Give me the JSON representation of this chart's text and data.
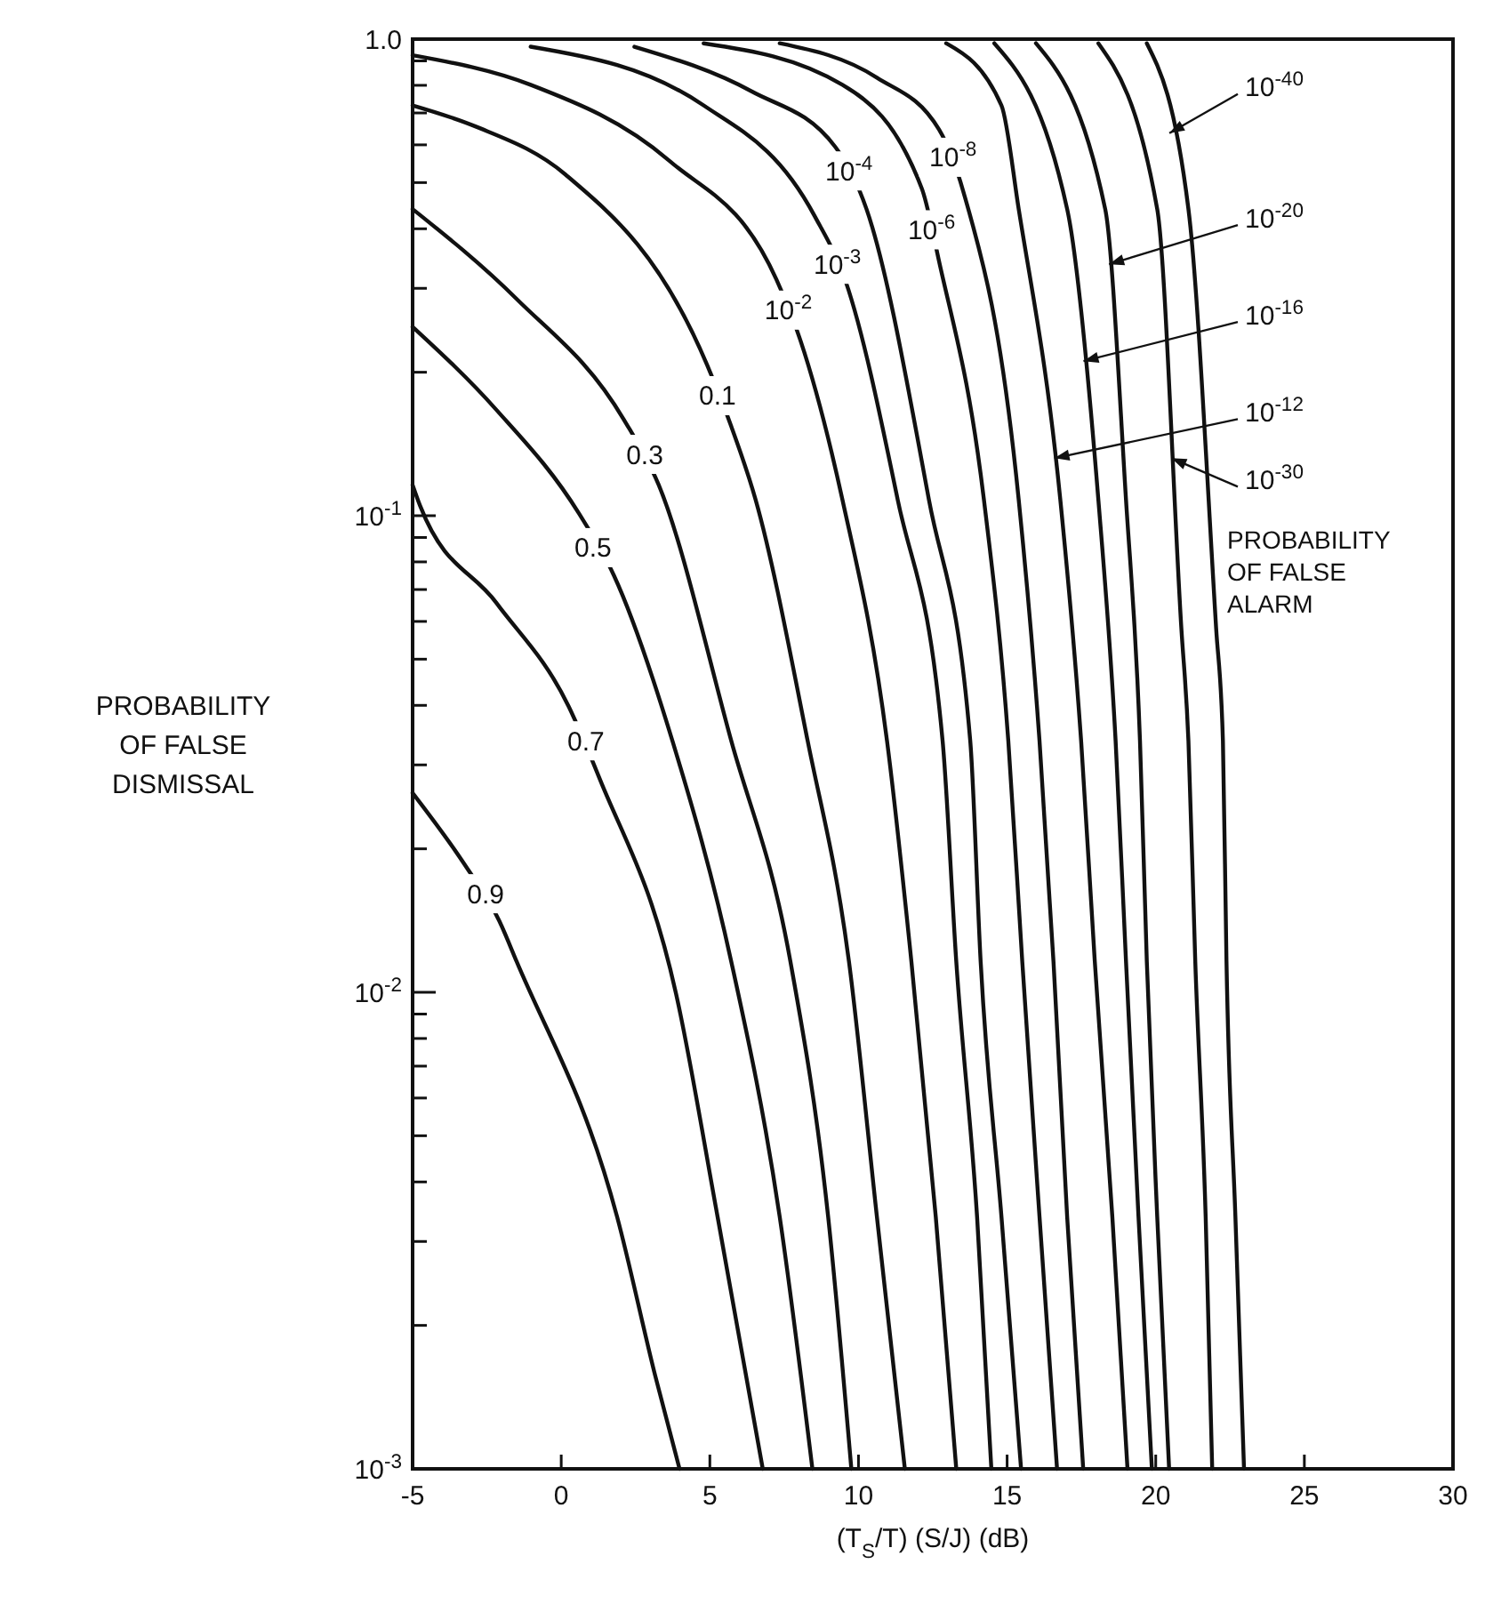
{
  "chart_data": {
    "type": "line",
    "xlabel": "(T$_{S}$/T) (S/J) (dB)",
    "ylabel": "PROBABILITY\nOF FALSE\nDISMISSAL",
    "log": "y",
    "xlim": [
      -5,
      30
    ],
    "xticks": [
      -5,
      0,
      5,
      10,
      15,
      20,
      25,
      30
    ],
    "ylim": [
      0.001,
      1
    ],
    "yticks": [
      {
        "value": 1,
        "label": "1.0"
      },
      {
        "value": 0.9,
        "label": null
      },
      {
        "value": 0.8,
        "label": null
      },
      {
        "value": 0.7,
        "label": null
      },
      {
        "value": 0.6,
        "label": null
      },
      {
        "value": 0.5,
        "label": null
      },
      {
        "value": 0.4,
        "label": null
      },
      {
        "value": 0.3,
        "label": null
      },
      {
        "value": 0.2,
        "label": null
      },
      {
        "value": 0.1,
        "label": "10$^{-1}$"
      },
      {
        "value": 0.09,
        "label": null
      },
      {
        "value": 0.08,
        "label": null
      },
      {
        "value": 0.07,
        "label": null
      },
      {
        "value": 0.06,
        "label": null
      },
      {
        "value": 0.05,
        "label": null
      },
      {
        "value": 0.04,
        "label": null
      },
      {
        "value": 0.03,
        "label": null
      },
      {
        "value": 0.02,
        "label": null
      },
      {
        "value": 0.01,
        "label": "10$^{-2}$"
      },
      {
        "value": 0.009,
        "label": null
      },
      {
        "value": 0.008,
        "label": null
      },
      {
        "value": 0.007,
        "label": null
      },
      {
        "value": 0.006,
        "label": null
      },
      {
        "value": 0.005,
        "label": null
      },
      {
        "value": 0.004,
        "label": null
      },
      {
        "value": 0.003,
        "label": null
      },
      {
        "value": 0.002,
        "label": null
      },
      {
        "value": 0.001,
        "label": "10$^{-3}$"
      }
    ],
    "grid": false,
    "series": [
      {
        "color": "#111111",
        "x": [
          -5,
          -3.24,
          -2.08,
          -1.5,
          1.88,
          3.16,
          3.98
        ],
        "values": [
          0.0262,
          0.0185,
          0.0141,
          0.0116,
          0.00338,
          0.00157,
          0.001
        ]
      },
      {
        "color": "#111111",
        "x": [
          -5,
          -4.75,
          -2.18,
          0.25,
          1.3,
          3.86,
          5.26,
          6.78
        ],
        "values": [
          0.116,
          0.105,
          0.0656,
          0.0398,
          0.028,
          0.00995,
          0.00338,
          0.001
        ]
      },
      {
        "color": "#111111",
        "x": [
          -5,
          -2.19,
          0.6,
          1.77,
          3.74,
          5.72,
          7.35,
          8.45
        ],
        "values": [
          0.249,
          0.167,
          0.101,
          0.075,
          0.0337,
          0.0116,
          0.00338,
          0.001
        ]
      },
      {
        "color": "#111111",
        "x": [
          -5,
          -1.5,
          2.11,
          3.28,
          5.72,
          7.71,
          8.98,
          9.76
        ],
        "values": [
          0.44,
          0.285,
          0.159,
          0.116,
          0.0337,
          0.0116,
          0.00338,
          0.001
        ]
      },
      {
        "color": "#111111",
        "x": [
          -5,
          -2.89,
          0.14,
          4.91,
          5.72,
          6.54,
          8.29,
          9.68,
          10.62,
          11.56
        ],
        "values": [
          0.726,
          0.656,
          0.52,
          0.207,
          0.154,
          0.108,
          0.0337,
          0.0116,
          0.00338,
          0.001
        ]
      },
      {
        "color": "#111111",
        "x": [
          -5,
          -1.03,
          3.63,
          7.24,
          8.05,
          9.46,
          10.96,
          11.78,
          12.6,
          13.29
        ],
        "values": [
          0.925,
          0.802,
          0.556,
          0.313,
          0.233,
          0.108,
          0.0337,
          0.0116,
          0.00338,
          0.001
        ]
      },
      {
        "color": "#111111",
        "x": [
          -1.03,
          4.79,
          8.52,
          9.57,
          11.32,
          12.83,
          13.29,
          13.99,
          14.47
        ],
        "values": [
          0.964,
          0.726,
          0.426,
          0.31,
          0.108,
          0.0337,
          0.0116,
          0.00338,
          0.001
        ]
      },
      {
        "color": "#111111",
        "x": [
          2.46,
          6.42,
          9.22,
          10.27,
          12.37,
          13.76,
          14.11,
          14.81,
          15.47
        ],
        "values": [
          0.964,
          0.776,
          0.594,
          0.44,
          0.108,
          0.0337,
          0.0116,
          0.00338,
          0.001
        ]
      },
      {
        "color": "#111111",
        "x": [
          4.79,
          9.46,
          12.13,
          12.71,
          14.22,
          15.04,
          15.51,
          16.09,
          16.68
        ],
        "values": [
          0.98,
          0.802,
          0.486,
          0.342,
          0.108,
          0.0337,
          0.0116,
          0.00338,
          0.001
        ]
      },
      {
        "color": "#111111",
        "x": [
          7.35,
          10.62,
          12.71,
          13.53,
          15.39,
          16.09,
          16.56,
          17.02,
          17.56
        ],
        "values": [
          0.98,
          0.83,
          0.646,
          0.478,
          0.108,
          0.0337,
          0.0116,
          0.00338,
          0.001
        ]
      },
      {
        "color": "#111111",
        "x": [
          12.95,
          14.81,
          15.39,
          16.79,
          17.49,
          17.95,
          18.54,
          19.05
        ],
        "values": [
          0.98,
          0.726,
          0.44,
          0.108,
          0.0337,
          0.0116,
          0.00338,
          0.001
        ]
      },
      {
        "color": "#111111",
        "x": [
          14.57,
          17.02,
          18.07,
          18.65,
          19.0,
          19.42,
          19.87
        ],
        "values": [
          0.98,
          0.44,
          0.108,
          0.0337,
          0.0116,
          0.00338,
          0.001
        ]
      },
      {
        "color": "#111111",
        "x": [
          15.97,
          18.3,
          19.0,
          19.47,
          19.7,
          20.05,
          20.45
        ],
        "values": [
          0.98,
          0.44,
          0.108,
          0.0337,
          0.0116,
          0.00338,
          0.001
        ]
      },
      {
        "color": "#111111",
        "x": [
          18.07,
          20.05,
          20.86,
          21.1,
          21.33,
          21.68,
          21.9
        ],
        "values": [
          0.98,
          0.44,
          0.0583,
          0.0337,
          0.0116,
          0.00338,
          0.001
        ]
      },
      {
        "color": "#111111",
        "x": [
          19.7,
          21.1,
          22.03,
          22.26,
          22.38,
          22.68,
          22.97
        ],
        "values": [
          0.98,
          0.44,
          0.0583,
          0.0337,
          0.0116,
          0.00338,
          0.001
        ]
      }
    ],
    "annotations": [
      {
        "text": "0.9",
        "x": -2.54,
        "y": 0.0161
      },
      {
        "text": "0.7",
        "x": 0.83,
        "y": 0.0337
      },
      {
        "text": "0.5",
        "x": 1.07,
        "y": 0.0857
      },
      {
        "text": "0.3",
        "x": 2.81,
        "y": 0.1345
      },
      {
        "text": "0.1",
        "x": 5.26,
        "y": 0.1786
      },
      {
        "text": "10$^{-2}$",
        "x": 7.64,
        "y": 0.27
      },
      {
        "text": "10$^{-3}$",
        "x": 9.29,
        "y": 0.337
      },
      {
        "text": "10$^{-4}$",
        "x": 9.68,
        "y": 0.529
      },
      {
        "text": "10$^{-6}$",
        "x": 12.46,
        "y": 0.398
      },
      {
        "text": "10$^{-8}$",
        "x": 13.18,
        "y": 0.565
      },
      {
        "text": "10$^{-40}$",
        "x": 20.46,
        "y": 0.635
      },
      {
        "text": "10$^{-20}$",
        "x": 18.43,
        "y": 0.337
      },
      {
        "text": "10$^{-16}$",
        "x": 17.57,
        "y": 0.211
      },
      {
        "text": "10$^{-12}$",
        "x": 16.59,
        "y": 0.132
      },
      {
        "text": "10$^{-30}$",
        "x": 20.53,
        "y": 0.132
      },
      "PROBABILITY\nOF FALSE\nALARM"
    ]
  }
}
